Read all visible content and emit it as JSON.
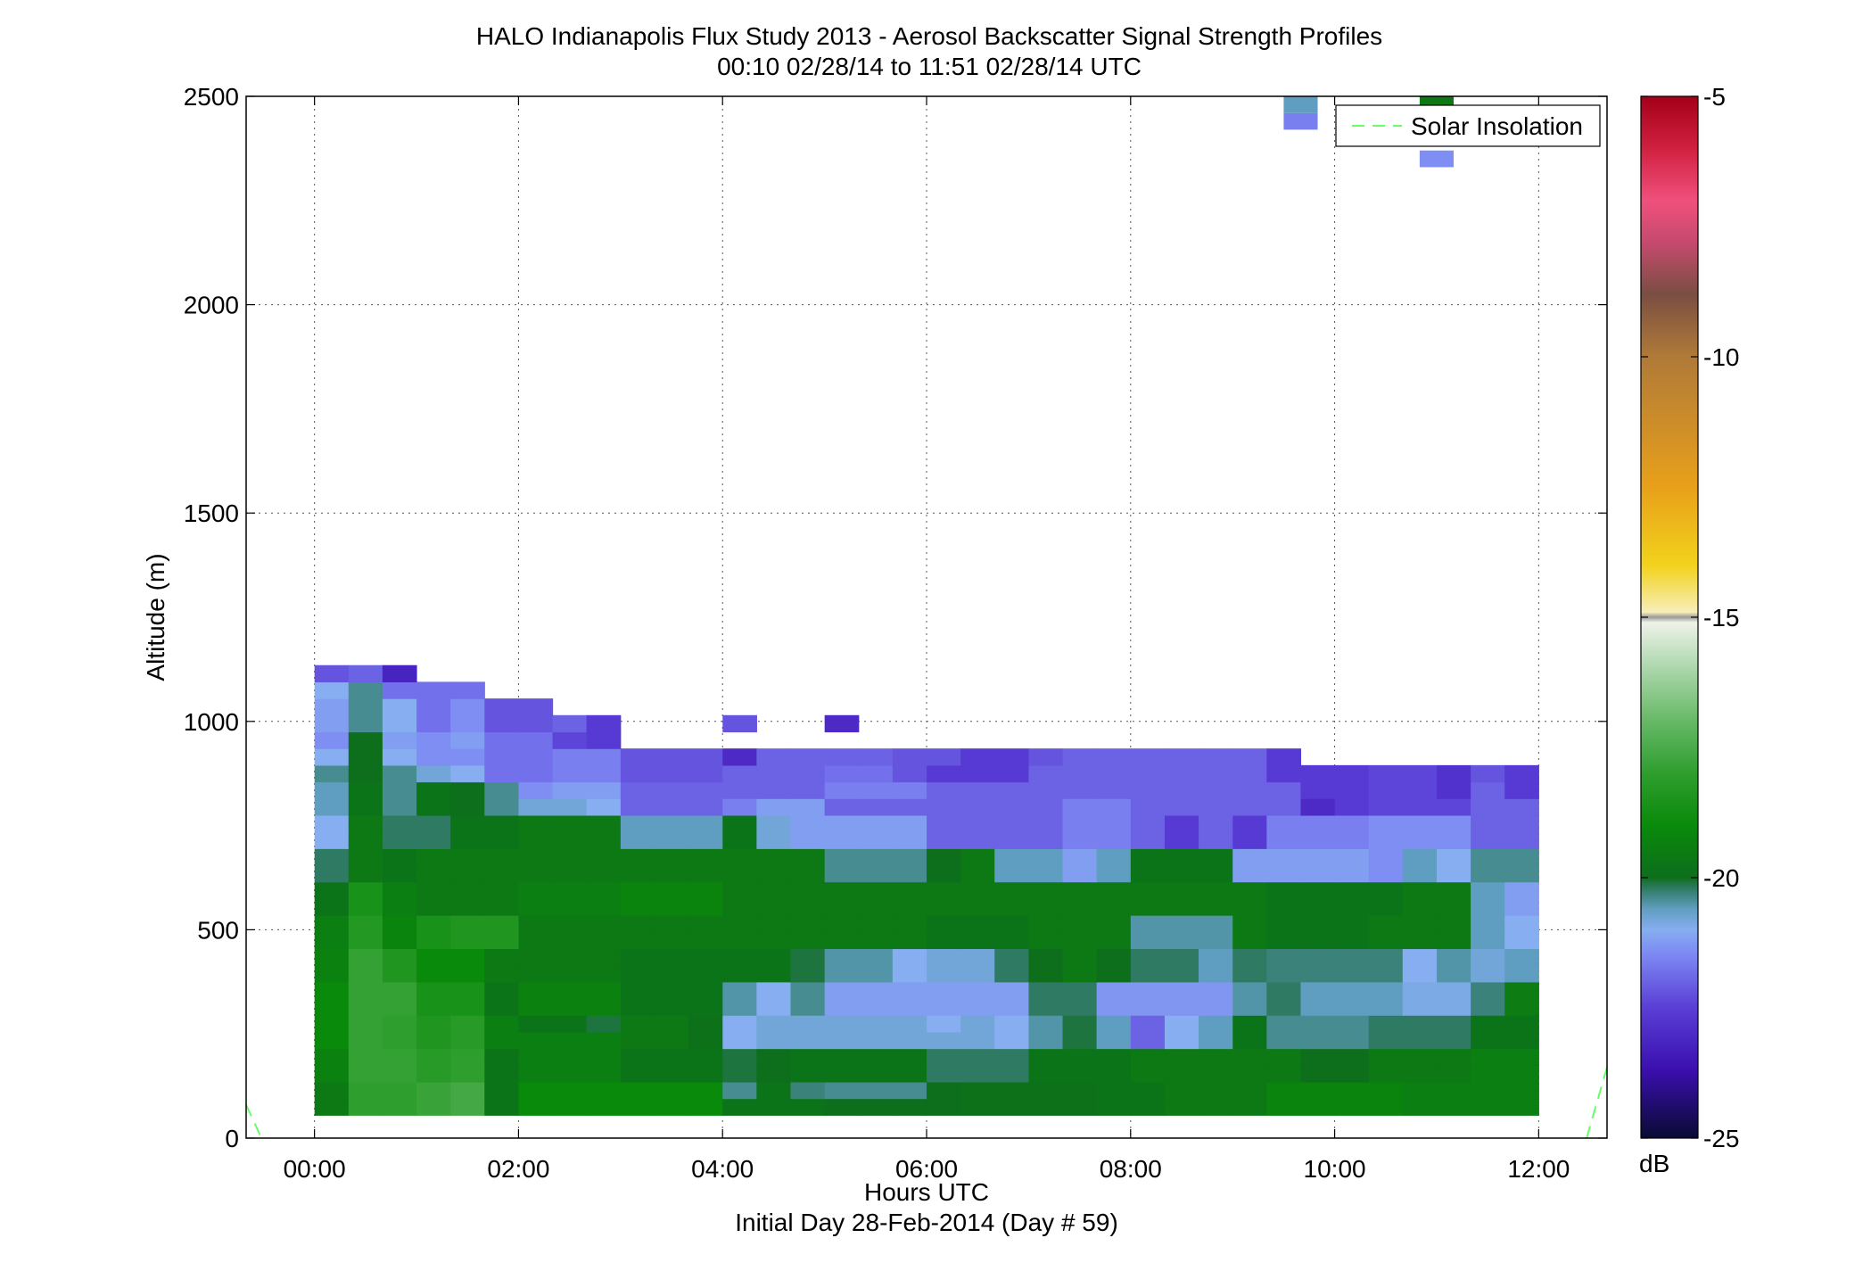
{
  "chart_data": {
    "type": "heatmap",
    "title": "HALO Indianapolis Flux Study 2013 - Aerosol Backscatter Signal Strength Profiles",
    "subtitle": "00:10 02/28/14 to 11:51 02/28/14  UTC",
    "xlabel": "Hours UTC",
    "xlabel2": "Initial Day 28-Feb-2014 (Day # 59)",
    "ylabel": "Altitude (m)",
    "xlim": [
      -0.67,
      12.67
    ],
    "ylim": [
      0,
      2500
    ],
    "grid": true,
    "x_ticks": [
      {
        "value": 0,
        "label": "00:00"
      },
      {
        "value": 2,
        "label": "02:00"
      },
      {
        "value": 4,
        "label": "04:00"
      },
      {
        "value": 6,
        "label": "06:00"
      },
      {
        "value": 8,
        "label": "08:00"
      },
      {
        "value": 10,
        "label": "10:00"
      },
      {
        "value": 12,
        "label": "12:00"
      }
    ],
    "y_ticks": [
      {
        "value": 0,
        "label": "0"
      },
      {
        "value": 500,
        "label": "500"
      },
      {
        "value": 1000,
        "label": "1000"
      },
      {
        "value": 1500,
        "label": "1500"
      },
      {
        "value": 2000,
        "label": "2000"
      },
      {
        "value": 2500,
        "label": "2500"
      }
    ],
    "legend": {
      "position": "top-right",
      "entries": [
        {
          "label": "Solar Insolation",
          "color": "#66ff66",
          "style": "dashed"
        }
      ]
    },
    "solar_insolation_x": [
      [
        -0.67,
        -0.52
      ],
      [
        12.47,
        12.67
      ]
    ],
    "solar_insolation_y": [
      [
        80,
        0
      ],
      [
        0,
        170
      ]
    ],
    "colorbar": {
      "unit": "dB",
      "range": [
        -25,
        -5
      ],
      "ticks": [
        {
          "value": -5,
          "label": "-5"
        },
        {
          "value": -10,
          "label": "-10"
        },
        {
          "value": -15,
          "label": "-15"
        },
        {
          "value": -20,
          "label": "-20"
        },
        {
          "value": -25,
          "label": "-25"
        }
      ],
      "stops": [
        {
          "value": -25,
          "color": "#0a0a33"
        },
        {
          "value": -23.7,
          "color": "#3a0fae"
        },
        {
          "value": -22.5,
          "color": "#5a3ed6"
        },
        {
          "value": -21.5,
          "color": "#7c86f2"
        },
        {
          "value": -21,
          "color": "#86aef0"
        },
        {
          "value": -20.6,
          "color": "#5f9ec0"
        },
        {
          "value": -20.2,
          "color": "#2f7a62"
        },
        {
          "value": -20,
          "color": "#0d6e1c"
        },
        {
          "value": -19,
          "color": "#0a8a0a"
        },
        {
          "value": -18,
          "color": "#2e9e2e"
        },
        {
          "value": -17,
          "color": "#66b866"
        },
        {
          "value": -16,
          "color": "#aad6aa"
        },
        {
          "value": -15.1,
          "color": "#eef2e8"
        },
        {
          "value": -15,
          "color": "#9a9a9a"
        },
        {
          "value": -14.9,
          "color": "#f7eeb8"
        },
        {
          "value": -14,
          "color": "#f2d21c"
        },
        {
          "value": -12.5,
          "color": "#e8a01a"
        },
        {
          "value": -10,
          "color": "#b07a38"
        },
        {
          "value": -8.8,
          "color": "#7a4e42"
        },
        {
          "value": -7.8,
          "color": "#c64a6e"
        },
        {
          "value": -7,
          "color": "#f0507c"
        },
        {
          "value": -6,
          "color": "#d02040"
        },
        {
          "value": -5,
          "color": "#a40018"
        }
      ]
    },
    "x_bins": [
      0.167,
      0.5,
      0.833,
      1.167,
      1.5,
      1.833,
      2.167,
      2.5,
      2.833,
      3.167,
      3.5,
      3.833,
      4.167,
      4.5,
      4.833,
      5.167,
      5.5,
      5.833,
      6.167,
      6.5,
      6.833,
      7.167,
      7.5,
      7.833,
      8.167,
      8.5,
      8.833,
      9.167,
      9.5,
      9.833,
      10.167,
      10.5,
      10.833,
      11.167,
      11.5,
      11.833
    ],
    "y_bins": [
      75,
      115,
      155,
      195,
      235,
      275,
      315,
      355,
      395,
      435,
      475,
      515,
      555,
      595,
      635,
      675,
      715,
      755,
      795,
      835,
      875,
      915,
      955,
      995,
      1035,
      1075,
      1115
    ],
    "z_values": [
      [
        -19.6,
        -18.0,
        -18.0,
        -17.8,
        -17.6,
        -19.8,
        -19.0,
        -19.0,
        -19.0,
        -19.0,
        -19.0,
        -19.0,
        -19.8,
        -19.8,
        -19.8,
        -20.0,
        -20.0,
        -20.0,
        -20.0,
        -19.9,
        -19.9,
        -19.9,
        -19.9,
        -19.8,
        -19.8,
        -19.6,
        -19.6,
        -19.6,
        -19.2,
        -19.2,
        -19.2,
        -19.2,
        -19.4,
        -19.4,
        -19.4,
        -19.4
      ],
      [
        -19.6,
        -18.0,
        -18.0,
        -17.8,
        -17.6,
        -19.8,
        -19.0,
        -19.0,
        -19.0,
        -19.0,
        -19.0,
        -19.0,
        -20.4,
        -19.8,
        -20.3,
        -20.4,
        -20.4,
        -20.4,
        -20.0,
        -19.9,
        -19.9,
        -19.9,
        -19.9,
        -19.8,
        -19.8,
        -19.6,
        -19.6,
        -19.6,
        -19.2,
        -19.2,
        -19.2,
        -19.2,
        -19.4,
        -19.4,
        -19.4,
        -19.4
      ],
      [
        -19.3,
        -17.9,
        -17.9,
        -18.2,
        -18.0,
        -19.8,
        -19.4,
        -19.4,
        -19.4,
        -19.8,
        -19.8,
        -19.8,
        -20.1,
        -20.0,
        -19.8,
        -19.8,
        -19.8,
        -19.8,
        -20.2,
        -20.2,
        -20.2,
        -19.8,
        -19.8,
        -19.8,
        -19.6,
        -19.6,
        -19.6,
        -19.6,
        -19.6,
        -20.0,
        -20.0,
        -19.6,
        -19.6,
        -19.6,
        -19.4,
        -19.4
      ],
      [
        -19.3,
        -17.9,
        -17.9,
        -18.2,
        -18.0,
        -19.8,
        -19.4,
        -19.4,
        -19.4,
        -19.8,
        -19.8,
        -19.8,
        -20.1,
        -20.0,
        -19.8,
        -19.8,
        -19.8,
        -19.8,
        -20.2,
        -20.2,
        -20.2,
        -19.8,
        -19.8,
        -19.8,
        -19.6,
        -19.6,
        -19.6,
        -19.6,
        -19.6,
        -20.0,
        -20.0,
        -19.6,
        -19.6,
        -19.6,
        -19.4,
        -19.4
      ],
      [
        -19.0,
        -17.9,
        -18.0,
        -18.4,
        -18.2,
        -19.4,
        -19.4,
        -19.4,
        -19.4,
        -19.6,
        -19.6,
        -19.9,
        -21.0,
        -20.8,
        -20.8,
        -20.8,
        -20.8,
        -20.8,
        -20.8,
        -20.8,
        -21.0,
        -20.5,
        -20.1,
        -20.6,
        -22.0,
        -21.0,
        -20.6,
        -19.8,
        -20.4,
        -20.4,
        -20.4,
        -20.2,
        -20.2,
        -20.2,
        -19.8,
        -19.8
      ],
      [
        -19.0,
        -17.9,
        -18.0,
        -18.4,
        -18.2,
        -19.4,
        -19.8,
        -19.8,
        -20.1,
        -19.6,
        -19.6,
        -19.9,
        -21.0,
        -20.8,
        -20.8,
        -20.8,
        -20.8,
        -20.8,
        -21.0,
        -20.8,
        -21.0,
        -20.5,
        -20.1,
        -20.6,
        -22.0,
        -21.0,
        -20.6,
        -19.8,
        -20.4,
        -20.4,
        -20.4,
        -20.2,
        -20.2,
        -20.2,
        -19.8,
        -19.8
      ],
      [
        -19.0,
        -17.9,
        -17.9,
        -18.6,
        -18.6,
        -19.8,
        -19.3,
        -19.3,
        -19.3,
        -19.8,
        -19.8,
        -19.8,
        -20.5,
        -21.0,
        -20.4,
        -21.2,
        -21.2,
        -21.2,
        -21.2,
        -21.2,
        -21.2,
        -20.2,
        -20.2,
        -21.3,
        -21.3,
        -21.3,
        -21.3,
        -20.5,
        -20.2,
        -20.6,
        -20.6,
        -20.6,
        -20.9,
        -20.9,
        -20.3,
        -19.5
      ],
      [
        -19.0,
        -17.9,
        -17.9,
        -18.6,
        -18.6,
        -19.8,
        -19.3,
        -19.3,
        -19.3,
        -19.8,
        -19.8,
        -19.8,
        -20.5,
        -21.0,
        -20.4,
        -21.2,
        -21.2,
        -21.2,
        -21.2,
        -21.2,
        -21.2,
        -20.2,
        -20.2,
        -21.3,
        -21.3,
        -21.3,
        -21.3,
        -20.5,
        -20.2,
        -20.6,
        -20.6,
        -20.6,
        -20.9,
        -20.9,
        -20.3,
        -19.5
      ],
      [
        -19.3,
        -17.9,
        -18.4,
        -19.0,
        -19.0,
        -19.6,
        -19.6,
        -19.6,
        -19.6,
        -19.8,
        -19.8,
        -19.8,
        -19.8,
        -19.8,
        -20.1,
        -20.5,
        -20.5,
        -21.0,
        -20.8,
        -20.8,
        -20.2,
        -20.0,
        -19.6,
        -20.0,
        -20.2,
        -20.2,
        -20.6,
        -20.2,
        -20.3,
        -20.3,
        -20.3,
        -20.3,
        -21.0,
        -20.5,
        -20.8,
        -20.6
      ],
      [
        -19.3,
        -17.9,
        -18.4,
        -19.0,
        -19.0,
        -19.6,
        -19.6,
        -19.6,
        -19.6,
        -19.8,
        -19.8,
        -19.8,
        -19.8,
        -19.8,
        -20.1,
        -20.5,
        -20.5,
        -21.0,
        -20.8,
        -20.8,
        -20.2,
        -20.0,
        -19.6,
        -20.0,
        -20.2,
        -20.2,
        -20.6,
        -20.2,
        -20.3,
        -20.3,
        -20.3,
        -20.3,
        -21.0,
        -20.5,
        -20.8,
        -20.6
      ],
      [
        -19.4,
        -18.3,
        -19.2,
        -18.6,
        -18.4,
        -18.4,
        -19.6,
        -19.6,
        -19.6,
        -19.6,
        -19.6,
        -19.6,
        -19.6,
        -19.6,
        -19.6,
        -19.6,
        -19.6,
        -19.6,
        -19.8,
        -19.8,
        -19.8,
        -19.6,
        -19.6,
        -19.6,
        -20.5,
        -20.5,
        -20.5,
        -19.6,
        -19.8,
        -19.8,
        -19.8,
        -19.6,
        -19.6,
        -19.6,
        -20.6,
        -21.0
      ],
      [
        -19.4,
        -18.3,
        -19.2,
        -18.6,
        -18.4,
        -18.4,
        -19.6,
        -19.6,
        -19.6,
        -19.6,
        -19.6,
        -19.6,
        -19.6,
        -19.6,
        -19.6,
        -19.6,
        -19.6,
        -19.6,
        -19.8,
        -19.8,
        -19.8,
        -19.6,
        -19.6,
        -19.6,
        -20.5,
        -20.5,
        -20.5,
        -19.6,
        -19.8,
        -19.8,
        -19.8,
        -19.6,
        -19.6,
        -19.6,
        -20.6,
        -21.0
      ],
      [
        -19.8,
        -18.6,
        -19.4,
        -19.6,
        -19.6,
        -19.6,
        -19.4,
        -19.4,
        -19.4,
        -19.2,
        -19.2,
        -19.2,
        -19.6,
        -19.6,
        -19.6,
        -19.6,
        -19.6,
        -19.6,
        -19.6,
        -19.6,
        -19.6,
        -19.6,
        -19.6,
        -19.6,
        -19.6,
        -19.6,
        -19.6,
        -19.6,
        -19.8,
        -19.8,
        -19.8,
        -19.8,
        -19.6,
        -19.6,
        -20.6,
        -21.2
      ],
      [
        -19.8,
        -18.6,
        -19.4,
        -19.6,
        -19.6,
        -19.6,
        -19.4,
        -19.4,
        -19.4,
        -19.2,
        -19.2,
        -19.2,
        -19.6,
        -19.6,
        -19.6,
        -19.6,
        -19.6,
        -19.6,
        -19.6,
        -19.6,
        -19.6,
        -19.6,
        -19.6,
        -19.6,
        -19.6,
        -19.6,
        -19.6,
        -19.6,
        -19.8,
        -19.8,
        -19.8,
        -19.8,
        -19.6,
        -19.6,
        -20.6,
        -21.2
      ],
      [
        -20.2,
        -19.6,
        -19.8,
        -19.6,
        -19.6,
        -19.6,
        -19.6,
        -19.6,
        -19.6,
        -19.6,
        -19.6,
        -19.6,
        -19.6,
        -19.6,
        -19.6,
        -20.4,
        -20.4,
        -20.4,
        -20.0,
        -19.6,
        -20.6,
        -20.6,
        -21.2,
        -20.6,
        -19.8,
        -19.8,
        -19.8,
        -21.2,
        -21.2,
        -21.2,
        -21.2,
        -21.4,
        -20.6,
        -21.0,
        -20.4,
        -20.4
      ],
      [
        -20.2,
        -19.6,
        -19.8,
        -19.6,
        -19.6,
        -19.6,
        -19.6,
        -19.6,
        -19.6,
        -19.6,
        -19.6,
        -19.6,
        -19.6,
        -19.6,
        -19.6,
        -20.4,
        -20.4,
        -20.4,
        -20.0,
        -19.6,
        -20.6,
        -20.6,
        -21.2,
        -20.6,
        -19.8,
        -19.8,
        -19.8,
        -21.2,
        -21.2,
        -21.2,
        -21.2,
        -21.4,
        -20.6,
        -21.0,
        -20.4,
        -20.4
      ],
      [
        -21.0,
        -19.6,
        -20.2,
        -20.2,
        -19.8,
        -19.8,
        -19.6,
        -19.6,
        -19.6,
        -20.6,
        -20.6,
        -20.6,
        -19.8,
        -20.8,
        -21.2,
        -21.2,
        -21.2,
        -21.2,
        -22.0,
        -22.0,
        -22.0,
        -22.0,
        -21.6,
        -21.6,
        -22.0,
        -22.6,
        -22.0,
        -22.6,
        -21.6,
        -21.6,
        -21.6,
        -21.4,
        -21.4,
        -21.4,
        -22.0,
        -22.0
      ],
      [
        -21.0,
        -19.6,
        -20.2,
        -20.2,
        -19.8,
        -19.8,
        -19.6,
        -19.6,
        -19.6,
        -20.6,
        -20.6,
        -20.6,
        -19.8,
        -20.8,
        -21.2,
        -21.2,
        -21.2,
        -21.2,
        -22.0,
        -22.0,
        -22.0,
        -22.0,
        -21.6,
        -21.6,
        -22.0,
        -22.6,
        -22.0,
        -22.6,
        -21.6,
        -21.6,
        -21.6,
        -21.4,
        -21.4,
        -21.4,
        -22.0,
        -22.0
      ],
      [
        -20.6,
        -19.8,
        -20.4,
        -19.8,
        -20.0,
        -20.4,
        -20.8,
        -20.8,
        -21.0,
        -22.0,
        -22.0,
        -22.0,
        -21.6,
        -21.2,
        -21.2,
        -22.0,
        -22.0,
        -22.0,
        -22.0,
        -22.0,
        -22.0,
        -22.0,
        -21.6,
        -21.6,
        -22.0,
        -22.0,
        -22.0,
        -22.0,
        -22.0,
        -23.0,
        -22.6,
        -22.4,
        -22.4,
        -22.4,
        -22.0,
        -22.0
      ],
      [
        -20.6,
        -19.8,
        -20.4,
        -19.8,
        -20.0,
        -20.4,
        -21.4,
        -21.2,
        -21.2,
        -22.0,
        -22.0,
        -22.0,
        -22.0,
        -22.0,
        -22.0,
        -21.6,
        -21.6,
        -21.6,
        -22.0,
        -22.0,
        -22.0,
        -22.0,
        -22.0,
        -22.0,
        -22.0,
        -22.0,
        -22.0,
        -22.0,
        -22.0,
        -22.6,
        -22.6,
        -22.4,
        -22.4,
        -22.8,
        -22.0,
        -22.6
      ],
      [
        -20.4,
        -20.0,
        -20.4,
        -20.8,
        -21.0,
        -21.8,
        -21.8,
        -21.6,
        -21.6,
        -22.2,
        -22.2,
        -22.2,
        -22.0,
        -22.0,
        -22.0,
        -21.8,
        -21.8,
        -22.2,
        -22.6,
        -22.6,
        -22.6,
        -22.0,
        -22.0,
        -22.0,
        -22.0,
        -22.0,
        -22.0,
        -22.0,
        -22.6,
        -22.6,
        -22.6,
        -22.4,
        -22.4,
        -22.8,
        -22.2,
        -22.6
      ],
      [
        -21.0,
        -20.0,
        -21.0,
        -21.4,
        -21.4,
        -21.8,
        -21.8,
        -21.6,
        -21.6,
        -22.2,
        -22.2,
        -22.2,
        -23.0,
        -22.0,
        -22.0,
        -22.0,
        -22.0,
        -22.2,
        -22.2,
        -22.6,
        -22.6,
        -22.2,
        -22.0,
        -22.0,
        -22.0,
        -22.0,
        -22.0,
        -22.0,
        -22.6,
        null,
        null,
        null,
        null,
        null,
        null,
        null
      ],
      [
        -21.4,
        -20.0,
        -21.2,
        -21.4,
        -21.2,
        -21.8,
        -21.8,
        -22.4,
        -22.6,
        null,
        null,
        null,
        null,
        null,
        null,
        null,
        null,
        null,
        null,
        null,
        null,
        null,
        null,
        null,
        null,
        null,
        null,
        null,
        null,
        null,
        null,
        null,
        null,
        null,
        null,
        null
      ],
      [
        -21.2,
        -20.4,
        -21.0,
        -21.8,
        -21.4,
        -22.2,
        -22.2,
        -22.0,
        -22.6,
        null,
        null,
        null,
        -22.2,
        null,
        null,
        -23.0,
        null,
        null,
        null,
        null,
        null,
        null,
        null,
        null,
        null,
        null,
        null,
        null,
        null,
        null,
        null,
        null,
        null,
        null,
        null,
        null
      ],
      [
        -21.2,
        -20.4,
        -21.0,
        -21.8,
        -21.4,
        -22.2,
        -22.2,
        null,
        null,
        null,
        null,
        null,
        null,
        null,
        null,
        null,
        null,
        null,
        null,
        null,
        null,
        null,
        null,
        null,
        null,
        null,
        null,
        null,
        null,
        null,
        null,
        null,
        null,
        null,
        null,
        null
      ],
      [
        -21.0,
        -20.4,
        -21.8,
        -21.8,
        -21.8,
        null,
        null,
        null,
        null,
        null,
        null,
        null,
        null,
        null,
        null,
        null,
        null,
        null,
        null,
        null,
        null,
        null,
        null,
        null,
        null,
        null,
        null,
        null,
        null,
        null,
        null,
        null,
        null,
        null,
        null,
        null
      ],
      [
        -22.2,
        -22.0,
        -23.2,
        null,
        null,
        null,
        null,
        null,
        null,
        null,
        null,
        null,
        null,
        null,
        null,
        null,
        null,
        null,
        null,
        null,
        null,
        null,
        null,
        null,
        null,
        null,
        null,
        null,
        null,
        null,
        null,
        null,
        null,
        null,
        null,
        null
      ]
    ],
    "sparse_cells": [
      {
        "x": 9.667,
        "y": 2460,
        "value": -21.6
      },
      {
        "x": 9.667,
        "y": 2500,
        "value": -20.6
      },
      {
        "x": 11.0,
        "y": 2370,
        "value": -21.4
      },
      {
        "x": 11.0,
        "y": 2500,
        "value": -19.6
      }
    ]
  }
}
